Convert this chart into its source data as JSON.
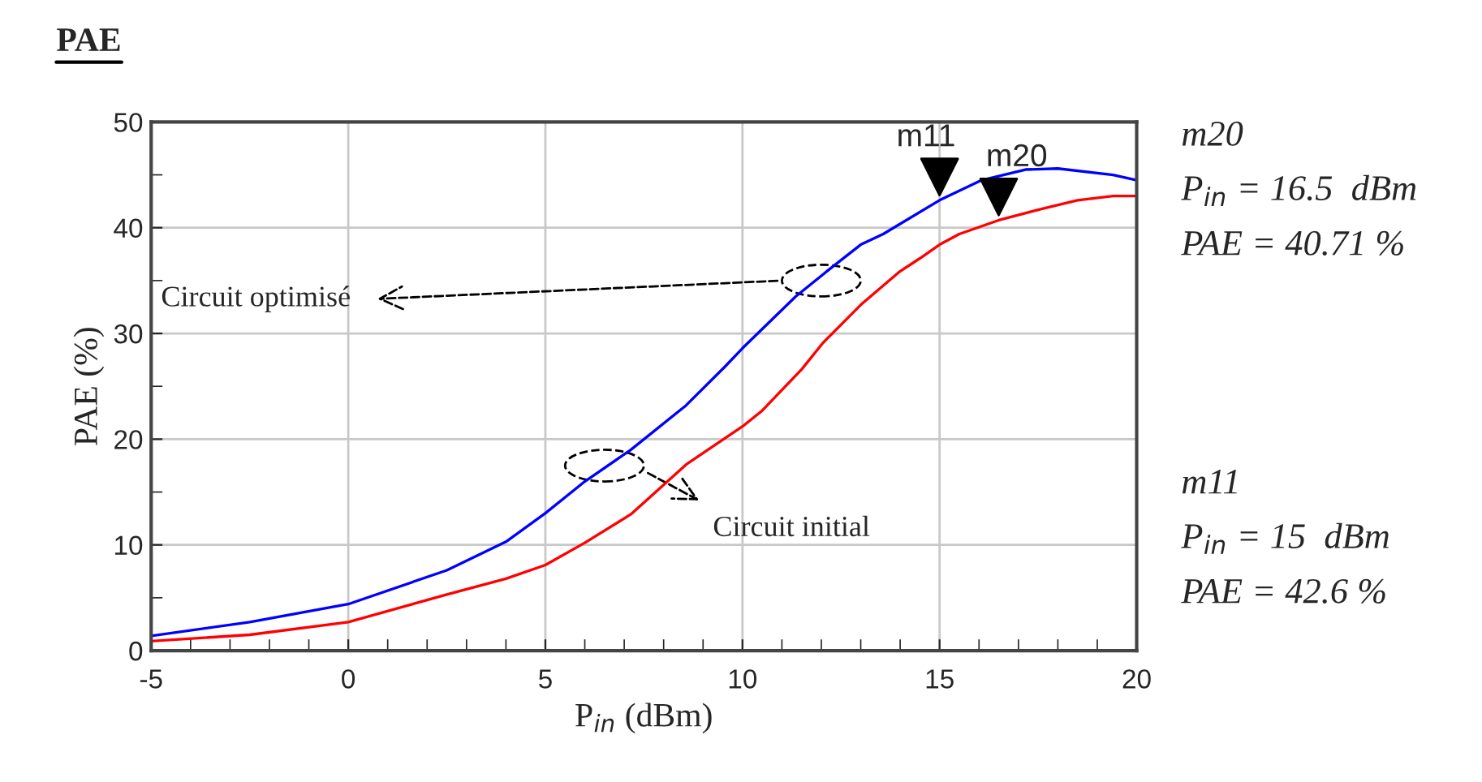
{
  "chart_data": {
    "type": "line",
    "title": "PAE",
    "xlabel": "P$_{in}$ (dBm)",
    "ylabel": "PAE (%)",
    "xlim": [
      -5,
      20
    ],
    "xticks": [
      -5,
      0,
      5,
      10,
      15,
      20
    ],
    "ylim": [
      0,
      50
    ],
    "yticks": [
      0,
      10,
      20,
      30,
      40,
      50
    ],
    "grid": true,
    "legend": false,
    "marker": "none",
    "line_style": "solid",
    "series": [
      {
        "color": "#0000ff",
        "x": [
          -5,
          -2.5,
          0,
          2.5,
          4,
          5,
          6,
          7.17,
          8.57,
          9.54,
          10,
          11.35,
          12.18,
          13.0,
          13.57,
          15,
          16.07,
          17.18,
          18.0,
          19.4,
          20
        ],
        "values": [
          1.4,
          2.7,
          4.4,
          7.6,
          10.3,
          13.0,
          16.0,
          19.0,
          23.2,
          26.8,
          28.6,
          33.5,
          36.0,
          38.4,
          39.4,
          42.6,
          44.5,
          45.5,
          45.6,
          45.0,
          44.5
        ]
      },
      {
        "color": "#ff0000",
        "x": [
          -5,
          -2.5,
          0,
          2.5,
          4,
          5,
          6,
          7.17,
          8.57,
          10,
          10.5,
          11.5,
          12.04,
          13.0,
          13.97,
          14.5,
          15,
          15.5,
          16.5,
          17.5,
          18.5,
          19.4,
          20
        ],
        "values": [
          0.9,
          1.5,
          2.7,
          5.3,
          6.8,
          8.1,
          10.2,
          12.9,
          17.6,
          21.2,
          22.7,
          26.6,
          29.1,
          32.7,
          35.8,
          37.1,
          38.4,
          39.4,
          40.71,
          41.7,
          42.6,
          43.0,
          43.0
        ]
      }
    ],
    "annotations": [
      {
        "text": "m11",
        "x": 15,
        "y": 42.6
      },
      {
        "text": "m20",
        "x": 16.5,
        "y": 40.71
      },
      "Circuit optimisé",
      "Circuit initial",
      "m20",
      "P$_{in}$ = 16.5  dBm",
      "PAE = 40.71 %",
      "m11",
      "P$_{in}$ = 15  dBm",
      "PAE = 42.6 %"
    ]
  }
}
